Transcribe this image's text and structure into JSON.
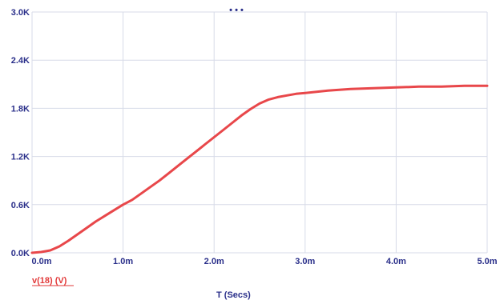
{
  "chart_data": {
    "type": "line",
    "xlabel": "T (Secs)",
    "ylabel": "",
    "xlim": [
      0,
      5.0
    ],
    "ylim": [
      0,
      3.0
    ],
    "x_ticks": [
      {
        "value": 0.0,
        "label": "0.0m"
      },
      {
        "value": 1.0,
        "label": "1.0m"
      },
      {
        "value": 2.0,
        "label": "2.0m"
      },
      {
        "value": 3.0,
        "label": "3.0m"
      },
      {
        "value": 4.0,
        "label": "4.0m"
      },
      {
        "value": 5.0,
        "label": "5.0m"
      }
    ],
    "y_ticks": [
      {
        "value": 0.0,
        "label": "0.0K"
      },
      {
        "value": 0.6,
        "label": "0.6K"
      },
      {
        "value": 1.2,
        "label": "1.2K"
      },
      {
        "value": 1.8,
        "label": "1.8K"
      },
      {
        "value": 2.4,
        "label": "2.4K"
      },
      {
        "value": 3.0,
        "label": "3.0K"
      }
    ],
    "grid": true,
    "legend_position": "bottom-left",
    "series": [
      {
        "name": "v(18) (V)",
        "color": "#e8474a",
        "x": [
          0.0,
          0.1,
          0.2,
          0.3,
          0.4,
          0.5,
          0.6,
          0.7,
          0.8,
          0.9,
          1.0,
          1.1,
          1.2,
          1.3,
          1.4,
          1.5,
          1.6,
          1.7,
          1.8,
          1.9,
          2.0,
          2.1,
          2.2,
          2.3,
          2.4,
          2.5,
          2.6,
          2.7,
          2.8,
          2.9,
          3.0,
          3.25,
          3.5,
          3.75,
          4.0,
          4.25,
          4.5,
          4.75,
          5.0
        ],
        "y": [
          0.0,
          0.01,
          0.03,
          0.08,
          0.15,
          0.23,
          0.31,
          0.39,
          0.46,
          0.53,
          0.6,
          0.66,
          0.74,
          0.82,
          0.9,
          0.99,
          1.08,
          1.17,
          1.26,
          1.35,
          1.44,
          1.53,
          1.62,
          1.71,
          1.79,
          1.86,
          1.91,
          1.94,
          1.96,
          1.98,
          1.99,
          2.02,
          2.04,
          2.05,
          2.06,
          2.07,
          2.07,
          2.08,
          2.08
        ]
      }
    ]
  },
  "header_marks": "• • •",
  "colors": {
    "grid": "#d7dbe8",
    "axis_text": "#2a2f8a",
    "series": "#e8474a"
  }
}
